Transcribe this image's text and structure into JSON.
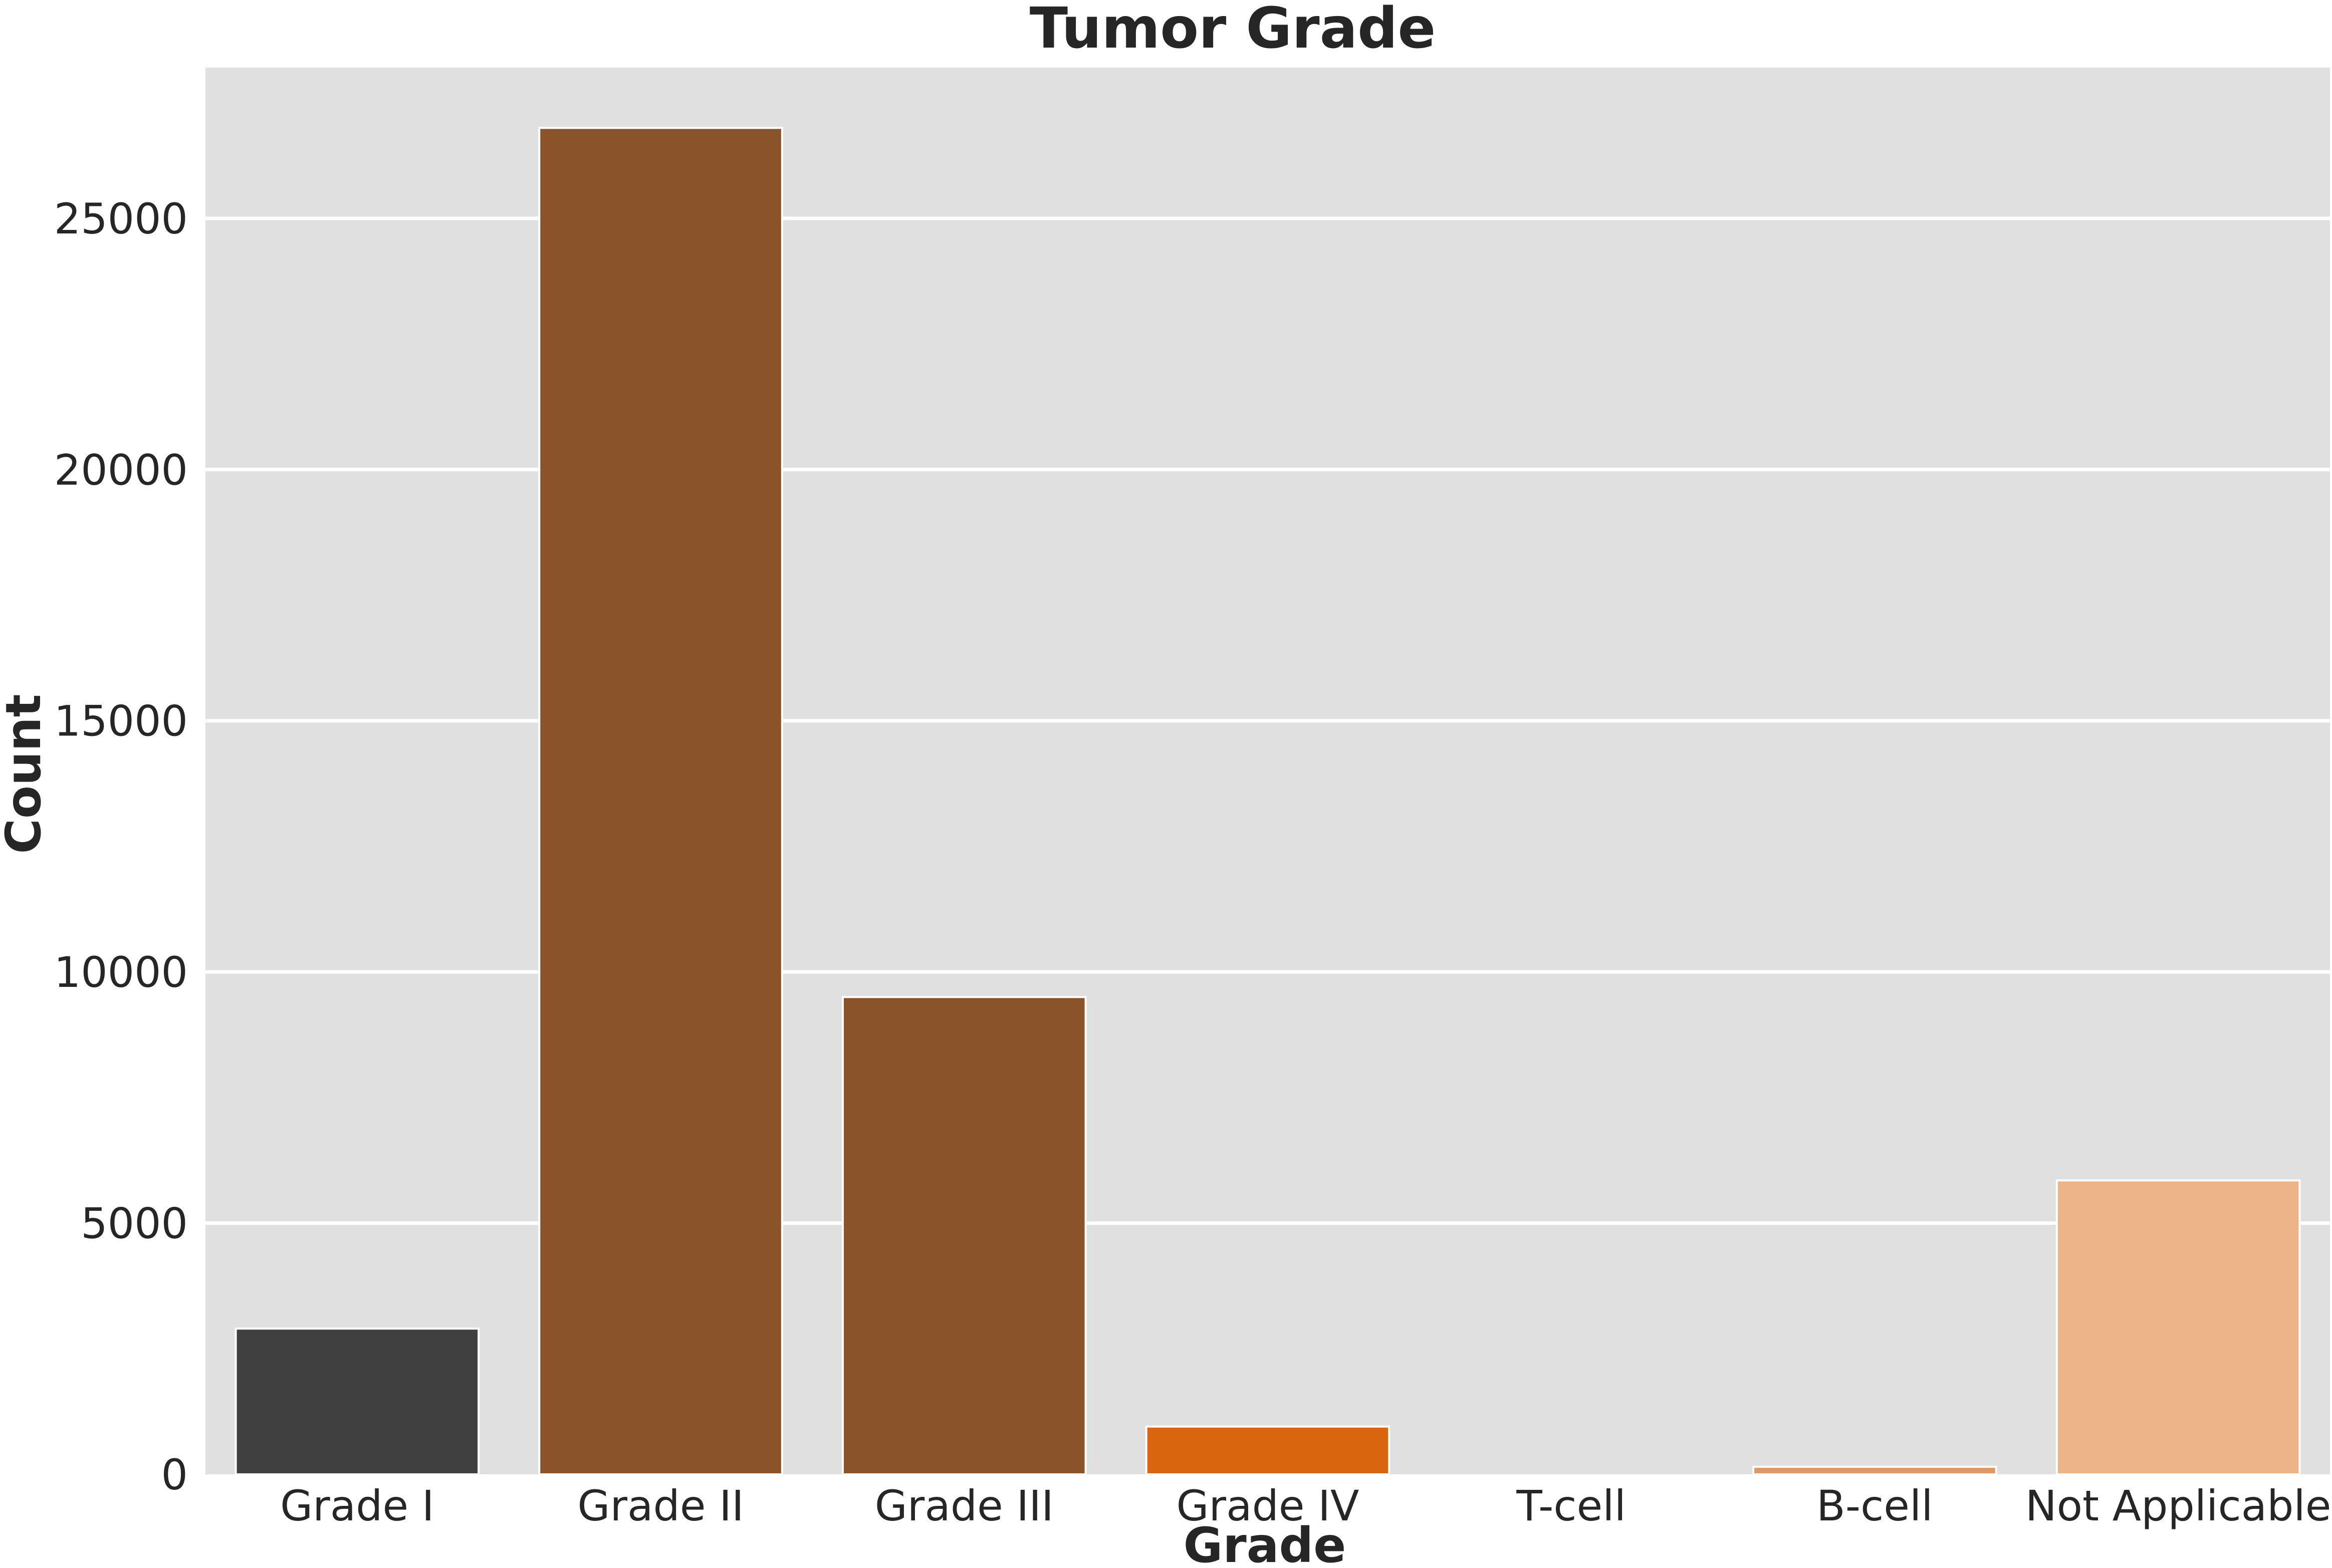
{
  "chart_data": {
    "type": "bar",
    "title": "Tumor Grade",
    "xlabel": "Grade",
    "ylabel": "Count",
    "categories": [
      "Grade I",
      "Grade II",
      "Grade III",
      "Grade IV",
      "T-cell",
      "B-cell",
      "Not Applicable"
    ],
    "values": [
      2900,
      26800,
      9500,
      950,
      0,
      150,
      5850
    ],
    "colors": [
      "#404040",
      "#8b532a",
      "#8b532a",
      "#d9650f",
      "#f0a36c",
      "#dc9a6a",
      "#edb48a"
    ],
    "ylim": [
      0,
      28000
    ],
    "yticks": [
      0,
      5000,
      10000,
      15000,
      20000,
      25000
    ],
    "grid": true,
    "background": "#e0e0e0"
  }
}
